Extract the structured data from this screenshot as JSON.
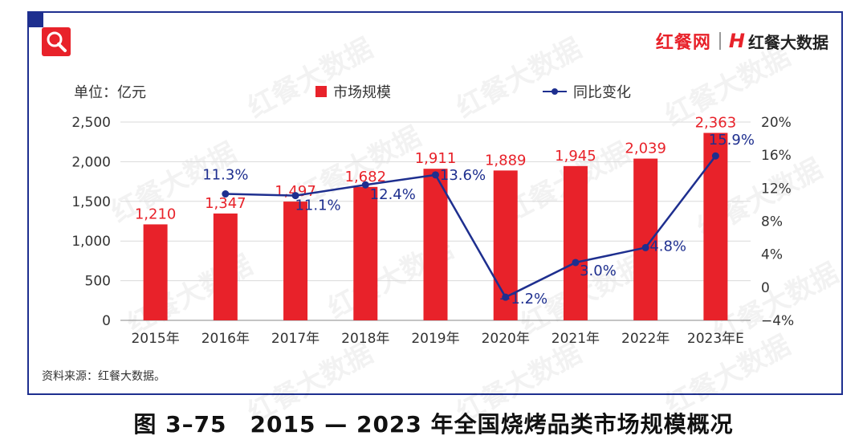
{
  "brand": {
    "name": "红餐网",
    "data_brand": "红餐大数据",
    "mark": "H"
  },
  "header": {
    "unit_label": "单位：亿元"
  },
  "legend": {
    "bar_label": "市场规模",
    "line_label": "同比变化"
  },
  "source": "资料来源：红餐大数据。",
  "caption": "图 3–75　2015 — 2023 年全国烧烤品类市场规模概况",
  "watermark": "红餐大数据",
  "colors": {
    "bar": "#e8222a",
    "line": "#1e2f8f",
    "frame": "#1e2f8f"
  },
  "icons": {
    "search": "search-icon"
  },
  "chart_data": {
    "type": "bar",
    "categories": [
      "2015年",
      "2016年",
      "2017年",
      "2018年",
      "2019年",
      "2020年",
      "2021年",
      "2022年",
      "2023年E"
    ],
    "series": [
      {
        "name": "市场规模",
        "type": "bar",
        "axis": "left",
        "values": [
          1210,
          1347,
          1497,
          1682,
          1911,
          1889,
          1945,
          2039,
          2363
        ],
        "labels": [
          "1,210",
          "1,347",
          "1,497",
          "1,682",
          "1,911",
          "1,889",
          "1,945",
          "2,039",
          "2,363"
        ]
      },
      {
        "name": "同比变化",
        "type": "line",
        "axis": "right",
        "values": [
          null,
          11.3,
          11.1,
          12.4,
          13.6,
          -1.2,
          3.0,
          4.8,
          15.9
        ],
        "labels": [
          "",
          "11.3%",
          "11.1%",
          "12.4%",
          "13.6%",
          "−1.2%",
          "3.0%",
          "4.8%",
          "15.9%"
        ]
      }
    ],
    "ylim_left": [
      0,
      2500
    ],
    "yticks_left": [
      "0",
      "500",
      "1,000",
      "1,500",
      "2,000",
      "2,500"
    ],
    "ylim_right": [
      -4,
      20
    ],
    "yticks_right": [
      "−4%",
      "0",
      "4%",
      "8%",
      "12%",
      "16%",
      "20%"
    ],
    "ylabel": "单位：亿元",
    "grid": true
  }
}
